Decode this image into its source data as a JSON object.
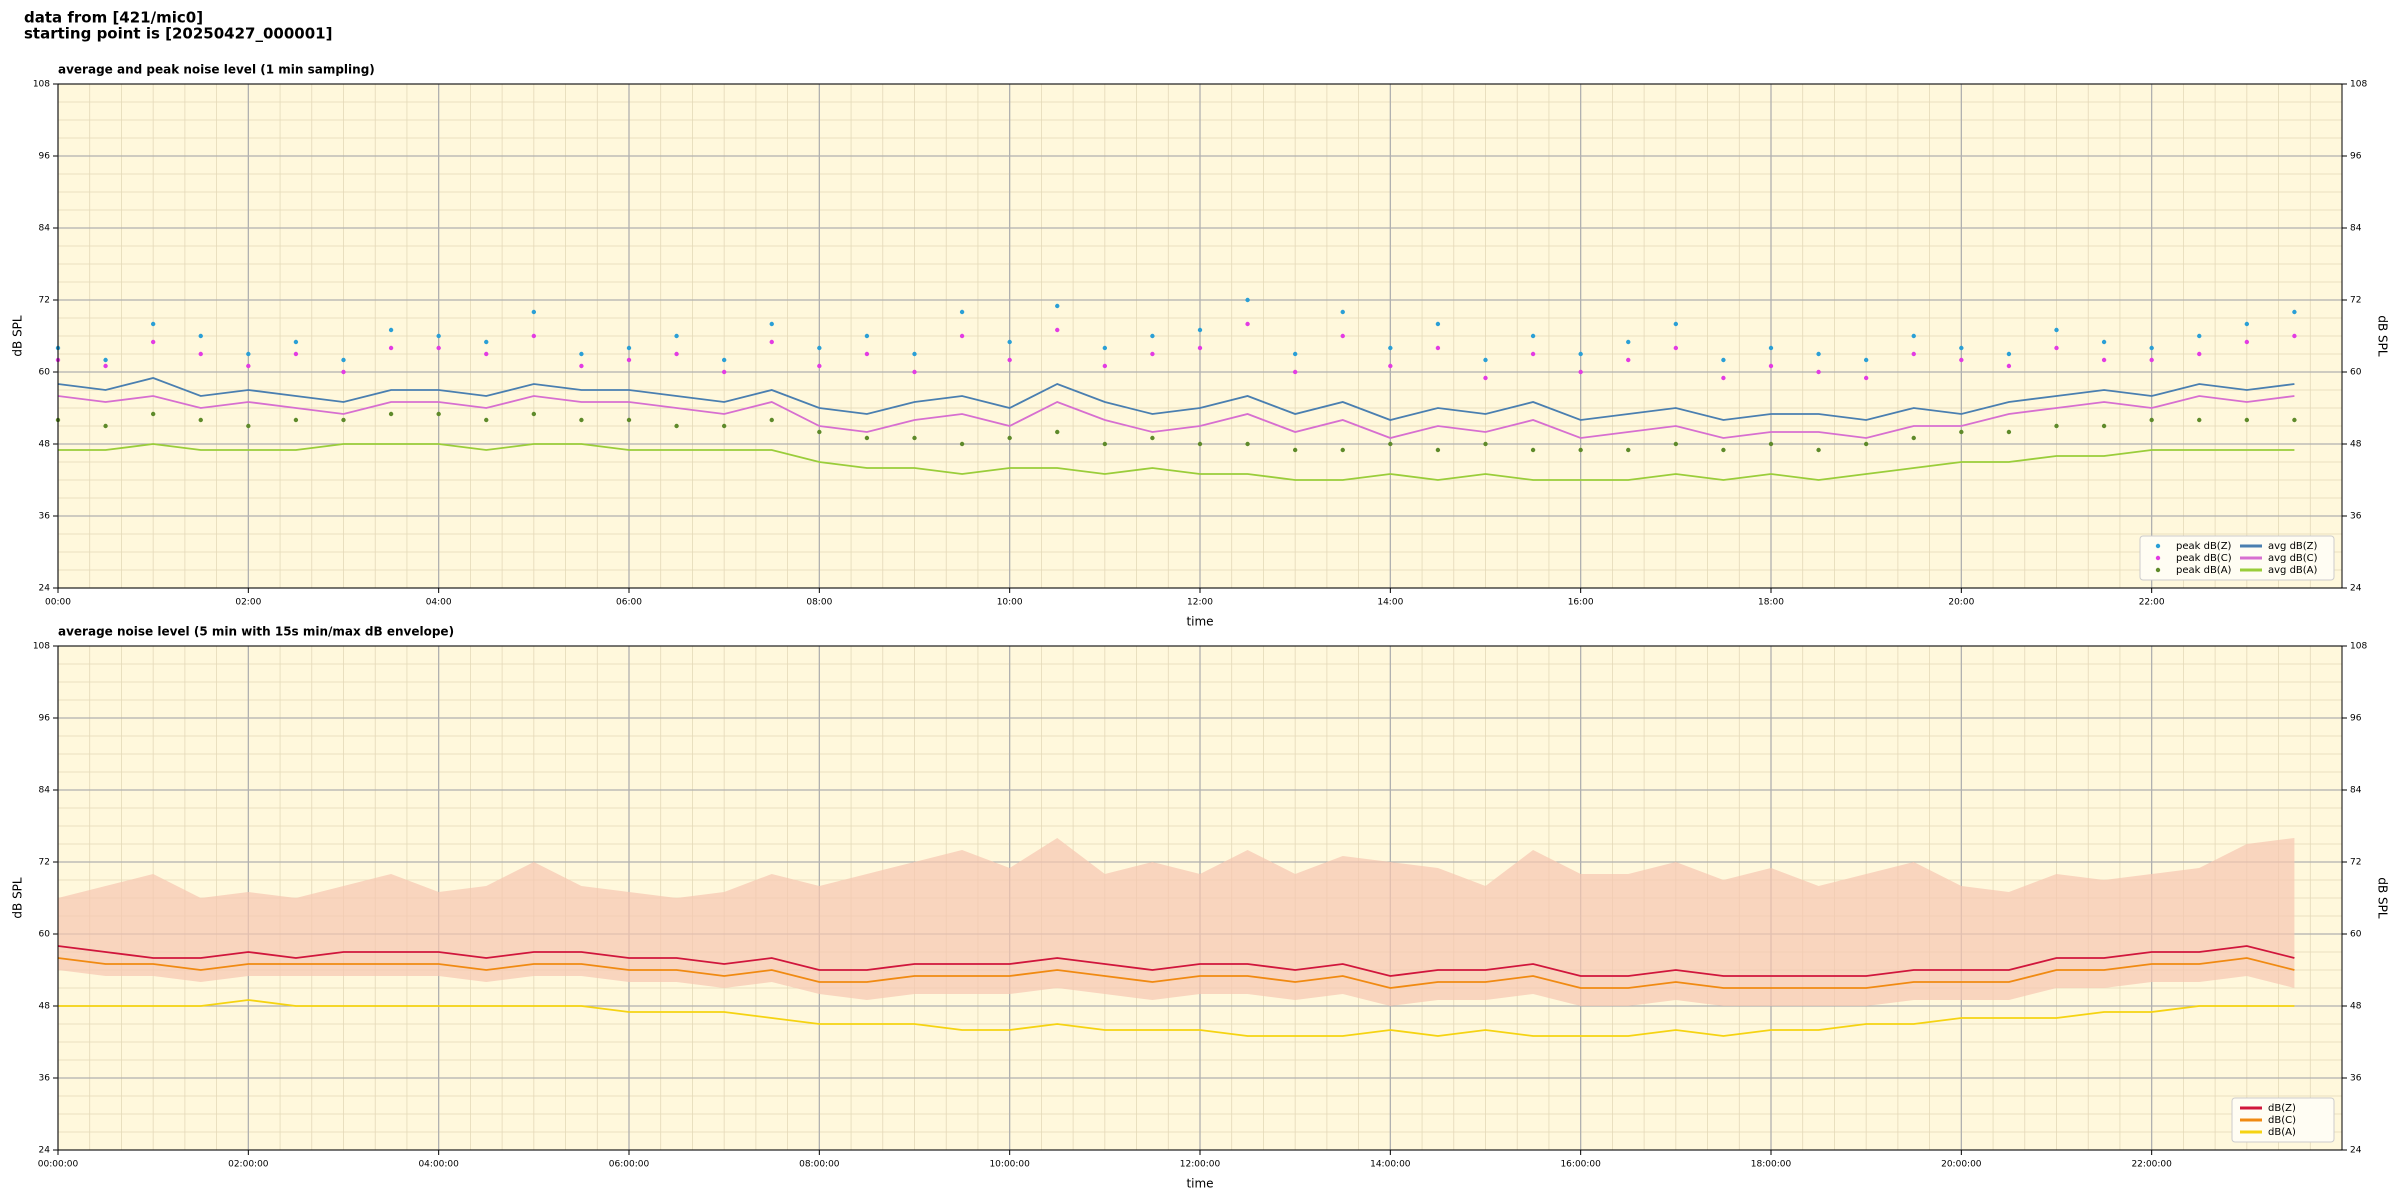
{
  "header": {
    "line1": "data from [421/mic0]",
    "line2": "starting point is [20250427_000001]"
  },
  "chart_data": [
    {
      "type": "line",
      "title": "average and peak noise level (1 min sampling)",
      "xlabel": "time",
      "ylabel": "dB SPL",
      "y2label": "dB SPL",
      "x": [
        0,
        0.5,
        1,
        1.5,
        2,
        2.5,
        3,
        3.5,
        4,
        4.5,
        5,
        5.5,
        6,
        6.5,
        7,
        7.5,
        8,
        8.5,
        9,
        9.5,
        10,
        10.5,
        11,
        11.5,
        12,
        12.5,
        13,
        13.5,
        14,
        14.5,
        15,
        15.5,
        16,
        16.5,
        17,
        17.5,
        18,
        18.5,
        19,
        19.5,
        20,
        20.5,
        21,
        21.5,
        22,
        22.5,
        23,
        23.5
      ],
      "xlim": [
        0,
        24
      ],
      "xticks": [
        {
          "value": 0,
          "label": "00:00"
        },
        {
          "value": 2,
          "label": "02:00"
        },
        {
          "value": 4,
          "label": "04:00"
        },
        {
          "value": 6,
          "label": "06:00"
        },
        {
          "value": 8,
          "label": "08:00"
        },
        {
          "value": 10,
          "label": "10:00"
        },
        {
          "value": 12,
          "label": "12:00"
        },
        {
          "value": 14,
          "label": "14:00"
        },
        {
          "value": 16,
          "label": "16:00"
        },
        {
          "value": 18,
          "label": "18:00"
        },
        {
          "value": 20,
          "label": "20:00"
        },
        {
          "value": 22,
          "label": "22:00"
        }
      ],
      "ylim": [
        24,
        108
      ],
      "yticks": [
        24,
        36,
        48,
        60,
        72,
        84,
        96,
        108
      ],
      "y2lim": [
        24,
        108
      ],
      "y2ticks": [
        24,
        36,
        48,
        60,
        72,
        84,
        96,
        108
      ],
      "grid": true,
      "legend": "lower right",
      "legend_columns": 2,
      "series": [
        {
          "name": "peak dB(Z)",
          "kind": "scatter",
          "color": "#2a9fd6",
          "values": [
            64,
            62,
            68,
            66,
            63,
            65,
            62,
            67,
            66,
            65,
            70,
            63,
            64,
            66,
            62,
            68,
            64,
            66,
            63,
            70,
            65,
            71,
            64,
            66,
            67,
            72,
            63,
            70,
            64,
            68,
            62,
            66,
            63,
            65,
            68,
            62,
            64,
            63,
            62,
            66,
            64,
            63,
            67,
            65,
            64,
            66,
            68,
            70
          ]
        },
        {
          "name": "peak dB(C)",
          "kind": "scatter",
          "color": "#e33be3",
          "values": [
            62,
            61,
            65,
            63,
            61,
            63,
            60,
            64,
            64,
            63,
            66,
            61,
            62,
            63,
            60,
            65,
            61,
            63,
            60,
            66,
            62,
            67,
            61,
            63,
            64,
            68,
            60,
            66,
            61,
            64,
            59,
            63,
            60,
            62,
            64,
            59,
            61,
            60,
            59,
            63,
            62,
            61,
            64,
            62,
            62,
            63,
            65,
            66
          ]
        },
        {
          "name": "peak dB(A)",
          "kind": "scatter",
          "color": "#5e8a2a",
          "values": [
            52,
            51,
            53,
            52,
            51,
            52,
            52,
            53,
            53,
            52,
            53,
            52,
            52,
            51,
            51,
            52,
            50,
            49,
            49,
            48,
            49,
            50,
            48,
            49,
            48,
            48,
            47,
            47,
            48,
            47,
            48,
            47,
            47,
            47,
            48,
            47,
            48,
            47,
            48,
            49,
            50,
            50,
            51,
            51,
            52,
            52,
            52,
            52
          ]
        },
        {
          "name": "avg dB(Z)",
          "kind": "line",
          "color": "#4a7fb0",
          "values": [
            58,
            57,
            59,
            56,
            57,
            56,
            55,
            57,
            57,
            56,
            58,
            57,
            57,
            56,
            55,
            57,
            54,
            53,
            55,
            56,
            54,
            58,
            55,
            53,
            54,
            56,
            53,
            55,
            52,
            54,
            53,
            55,
            52,
            53,
            54,
            52,
            53,
            53,
            52,
            54,
            53,
            55,
            56,
            57,
            56,
            58,
            57,
            58
          ]
        },
        {
          "name": "avg dB(C)",
          "kind": "line",
          "color": "#d76fd0",
          "values": [
            56,
            55,
            56,
            54,
            55,
            54,
            53,
            55,
            55,
            54,
            56,
            55,
            55,
            54,
            53,
            55,
            51,
            50,
            52,
            53,
            51,
            55,
            52,
            50,
            51,
            53,
            50,
            52,
            49,
            51,
            50,
            52,
            49,
            50,
            51,
            49,
            50,
            50,
            49,
            51,
            51,
            53,
            54,
            55,
            54,
            56,
            55,
            56
          ]
        },
        {
          "name": "avg dB(A)",
          "kind": "line",
          "color": "#9acd3a",
          "values": [
            47,
            47,
            48,
            47,
            47,
            47,
            48,
            48,
            48,
            47,
            48,
            48,
            47,
            47,
            47,
            47,
            45,
            44,
            44,
            43,
            44,
            44,
            43,
            44,
            43,
            43,
            42,
            42,
            43,
            42,
            43,
            42,
            42,
            42,
            43,
            42,
            43,
            42,
            43,
            44,
            45,
            45,
            46,
            46,
            47,
            47,
            47,
            47
          ]
        }
      ]
    },
    {
      "type": "line",
      "title": "average noise level (5 min with 15s min/max dB envelope)",
      "xlabel": "time",
      "ylabel": "dB SPL",
      "y2label": "dB SPL",
      "x": [
        0,
        0.5,
        1,
        1.5,
        2,
        2.5,
        3,
        3.5,
        4,
        4.5,
        5,
        5.5,
        6,
        6.5,
        7,
        7.5,
        8,
        8.5,
        9,
        9.5,
        10,
        10.5,
        11,
        11.5,
        12,
        12.5,
        13,
        13.5,
        14,
        14.5,
        15,
        15.5,
        16,
        16.5,
        17,
        17.5,
        18,
        18.5,
        19,
        19.5,
        20,
        20.5,
        21,
        21.5,
        22,
        22.5,
        23,
        23.5
      ],
      "xlim": [
        0,
        24
      ],
      "xticks": [
        {
          "value": 0,
          "label": "00:00:00"
        },
        {
          "value": 2,
          "label": "02:00:00"
        },
        {
          "value": 4,
          "label": "04:00:00"
        },
        {
          "value": 6,
          "label": "06:00:00"
        },
        {
          "value": 8,
          "label": "08:00:00"
        },
        {
          "value": 10,
          "label": "10:00:00"
        },
        {
          "value": 12,
          "label": "12:00:00"
        },
        {
          "value": 14,
          "label": "14:00:00"
        },
        {
          "value": 16,
          "label": "16:00:00"
        },
        {
          "value": 18,
          "label": "18:00:00"
        },
        {
          "value": 20,
          "label": "20:00:00"
        },
        {
          "value": 22,
          "label": "22:00:00"
        }
      ],
      "ylim": [
        24,
        108
      ],
      "yticks": [
        24,
        36,
        48,
        60,
        72,
        84,
        96,
        108
      ],
      "y2lim": [
        24,
        108
      ],
      "y2ticks": [
        24,
        36,
        48,
        60,
        72,
        84,
        96,
        108
      ],
      "grid": true,
      "legend": "lower right",
      "legend_columns": 1,
      "envelope": {
        "color": "#f7c6b0",
        "max": [
          66,
          68,
          70,
          66,
          67,
          66,
          68,
          70,
          67,
          68,
          72,
          68,
          67,
          66,
          67,
          70,
          68,
          70,
          72,
          74,
          71,
          76,
          70,
          72,
          70,
          74,
          70,
          73,
          72,
          71,
          68,
          74,
          70,
          70,
          72,
          69,
          71,
          68,
          70,
          72,
          68,
          67,
          70,
          69,
          70,
          71,
          75,
          76
        ],
        "min": [
          54,
          53,
          53,
          52,
          53,
          53,
          53,
          53,
          53,
          52,
          53,
          53,
          52,
          52,
          51,
          52,
          50,
          49,
          50,
          50,
          50,
          51,
          50,
          49,
          50,
          50,
          49,
          50,
          48,
          49,
          49,
          50,
          48,
          48,
          49,
          48,
          48,
          48,
          48,
          49,
          49,
          49,
          51,
          51,
          52,
          52,
          53,
          51
        ]
      },
      "series": [
        {
          "name": "dB(Z)",
          "kind": "line",
          "color": "#d0163c",
          "values": [
            58,
            57,
            56,
            56,
            57,
            56,
            57,
            57,
            57,
            56,
            57,
            57,
            56,
            56,
            55,
            56,
            54,
            54,
            55,
            55,
            55,
            56,
            55,
            54,
            55,
            55,
            54,
            55,
            53,
            54,
            54,
            55,
            53,
            53,
            54,
            53,
            53,
            53,
            53,
            54,
            54,
            54,
            56,
            56,
            57,
            57,
            58,
            56
          ]
        },
        {
          "name": "dB(C)",
          "kind": "line",
          "color": "#f08a12",
          "values": [
            56,
            55,
            55,
            54,
            55,
            55,
            55,
            55,
            55,
            54,
            55,
            55,
            54,
            54,
            53,
            54,
            52,
            52,
            53,
            53,
            53,
            54,
            53,
            52,
            53,
            53,
            52,
            53,
            51,
            52,
            52,
            53,
            51,
            51,
            52,
            51,
            51,
            51,
            51,
            52,
            52,
            52,
            54,
            54,
            55,
            55,
            56,
            54
          ]
        },
        {
          "name": "dB(A)",
          "kind": "line",
          "color": "#f5d312",
          "values": [
            48,
            48,
            48,
            48,
            49,
            48,
            48,
            48,
            48,
            48,
            48,
            48,
            47,
            47,
            47,
            46,
            45,
            45,
            45,
            44,
            44,
            45,
            44,
            44,
            44,
            43,
            43,
            43,
            44,
            43,
            44,
            43,
            43,
            43,
            44,
            43,
            44,
            44,
            45,
            45,
            46,
            46,
            46,
            47,
            47,
            48,
            48,
            48
          ]
        }
      ]
    }
  ]
}
